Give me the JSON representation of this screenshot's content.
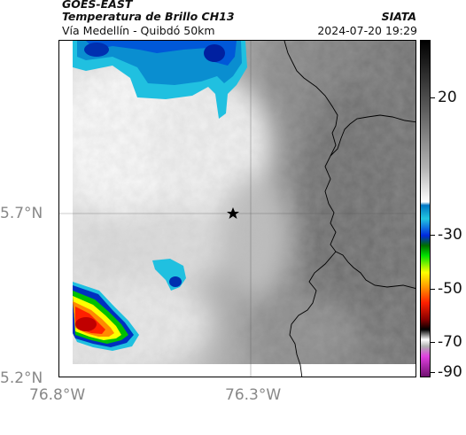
{
  "header": {
    "satellite": "GOES-EAST",
    "product": "Temperatura de Brillo CH13",
    "area": "Vía Medellín - Quibdó 50km",
    "organization": "SIATA",
    "datetime": "2024-07-20 19:29"
  },
  "axes": {
    "lat_labels": [
      "5.7°N",
      "5.2°N"
    ],
    "lon_labels": [
      "76.8°W",
      "76.3°W"
    ]
  },
  "colorbar": {
    "ticks": [
      {
        "label": "20",
        "value": 20
      },
      {
        "label": "-30",
        "value": -30
      },
      {
        "label": "-50",
        "value": -50
      },
      {
        "label": "-70",
        "value": -70
      },
      {
        "label": "-90",
        "value": -90
      }
    ]
  },
  "marker": {
    "icon": "star-icon"
  },
  "colors": {
    "cold_cloud_cyan": "#22c6e0",
    "cold_cloud_blue": "#0028e0",
    "convective_red": "#e00000",
    "border_line": "#000000"
  }
}
